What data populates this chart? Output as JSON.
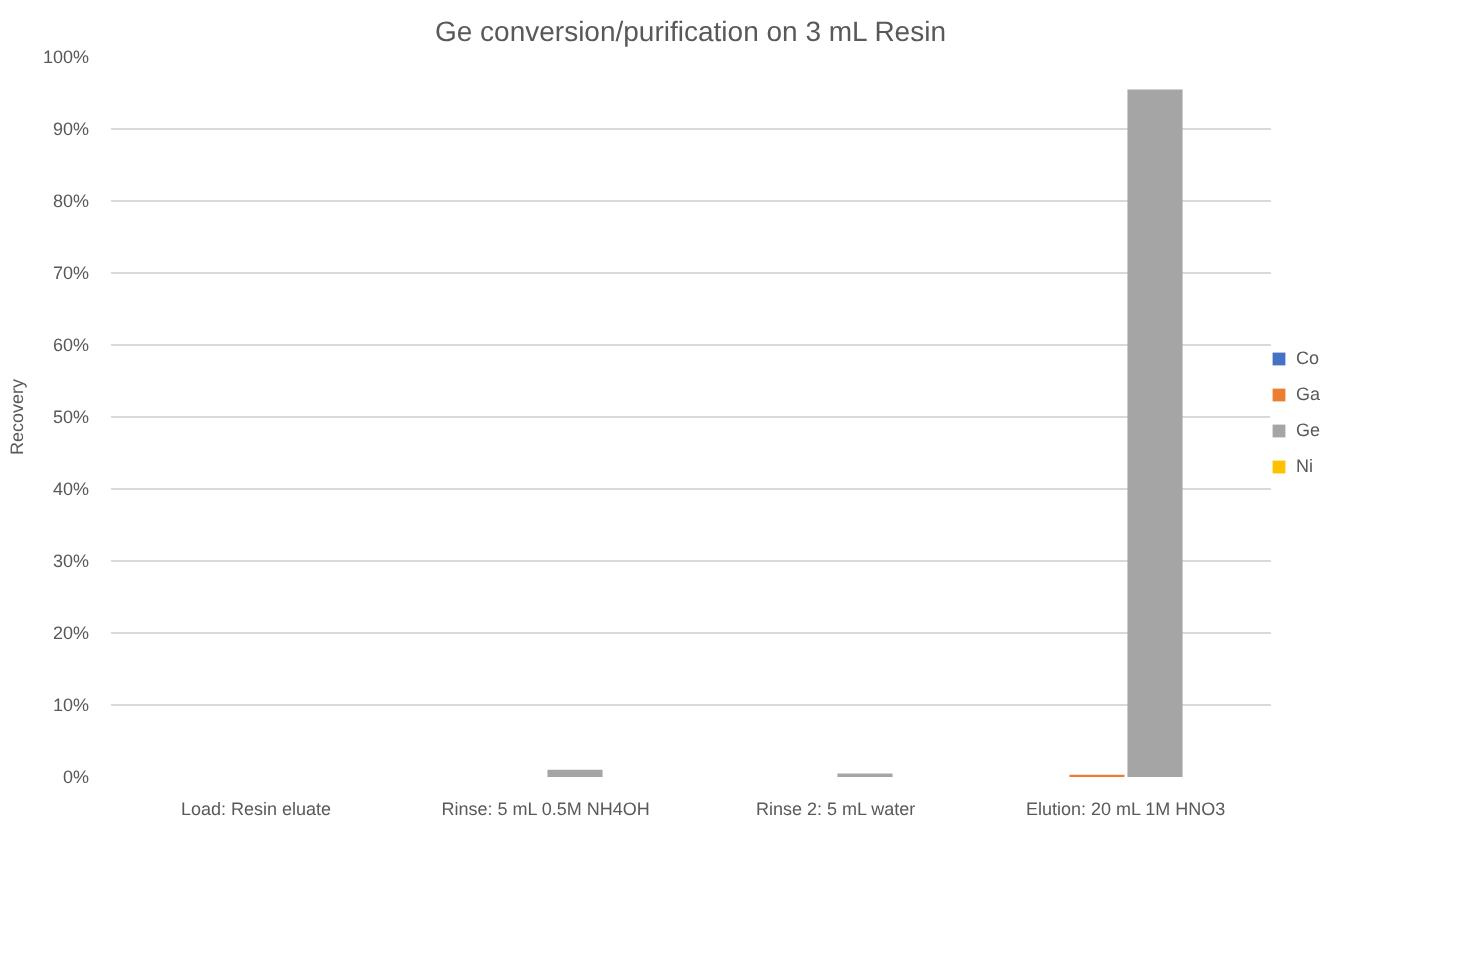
{
  "chart_data": {
    "type": "bar",
    "title": "Ge conversion/purification on 3 mL Resin",
    "ylabel": "Recovery",
    "categories": [
      "Load: Resin eluate",
      "Rinse: 5 mL 0.5M NH4OH",
      "Rinse 2: 5 mL water",
      "Elution: 20 mL 1M HNO3"
    ],
    "series": [
      {
        "name": "Co",
        "color": "#4472c4",
        "values": [
          0,
          0,
          0,
          0
        ]
      },
      {
        "name": "Ga",
        "color": "#ed7d31",
        "values": [
          0,
          0,
          0,
          0.3
        ]
      },
      {
        "name": "Ge",
        "color": "#a5a5a5",
        "values": [
          0,
          1,
          0.5,
          95.5
        ]
      },
      {
        "name": "Ni",
        "color": "#ffc000",
        "values": [
          0,
          0,
          0,
          0
        ]
      }
    ],
    "ylim": [
      0,
      100
    ],
    "yticks": [
      {
        "value": 0,
        "label": "0%"
      },
      {
        "value": 10,
        "label": "10%"
      },
      {
        "value": 20,
        "label": "20%"
      },
      {
        "value": 30,
        "label": "30%"
      },
      {
        "value": 40,
        "label": "40%"
      },
      {
        "value": 50,
        "label": "50%"
      },
      {
        "value": 60,
        "label": "60%"
      },
      {
        "value": 70,
        "label": "70%"
      },
      {
        "value": 80,
        "label": "80%"
      },
      {
        "value": 90,
        "label": "90%"
      },
      {
        "value": 100,
        "label": "100%"
      }
    ],
    "grid": "y",
    "legend": "right"
  }
}
